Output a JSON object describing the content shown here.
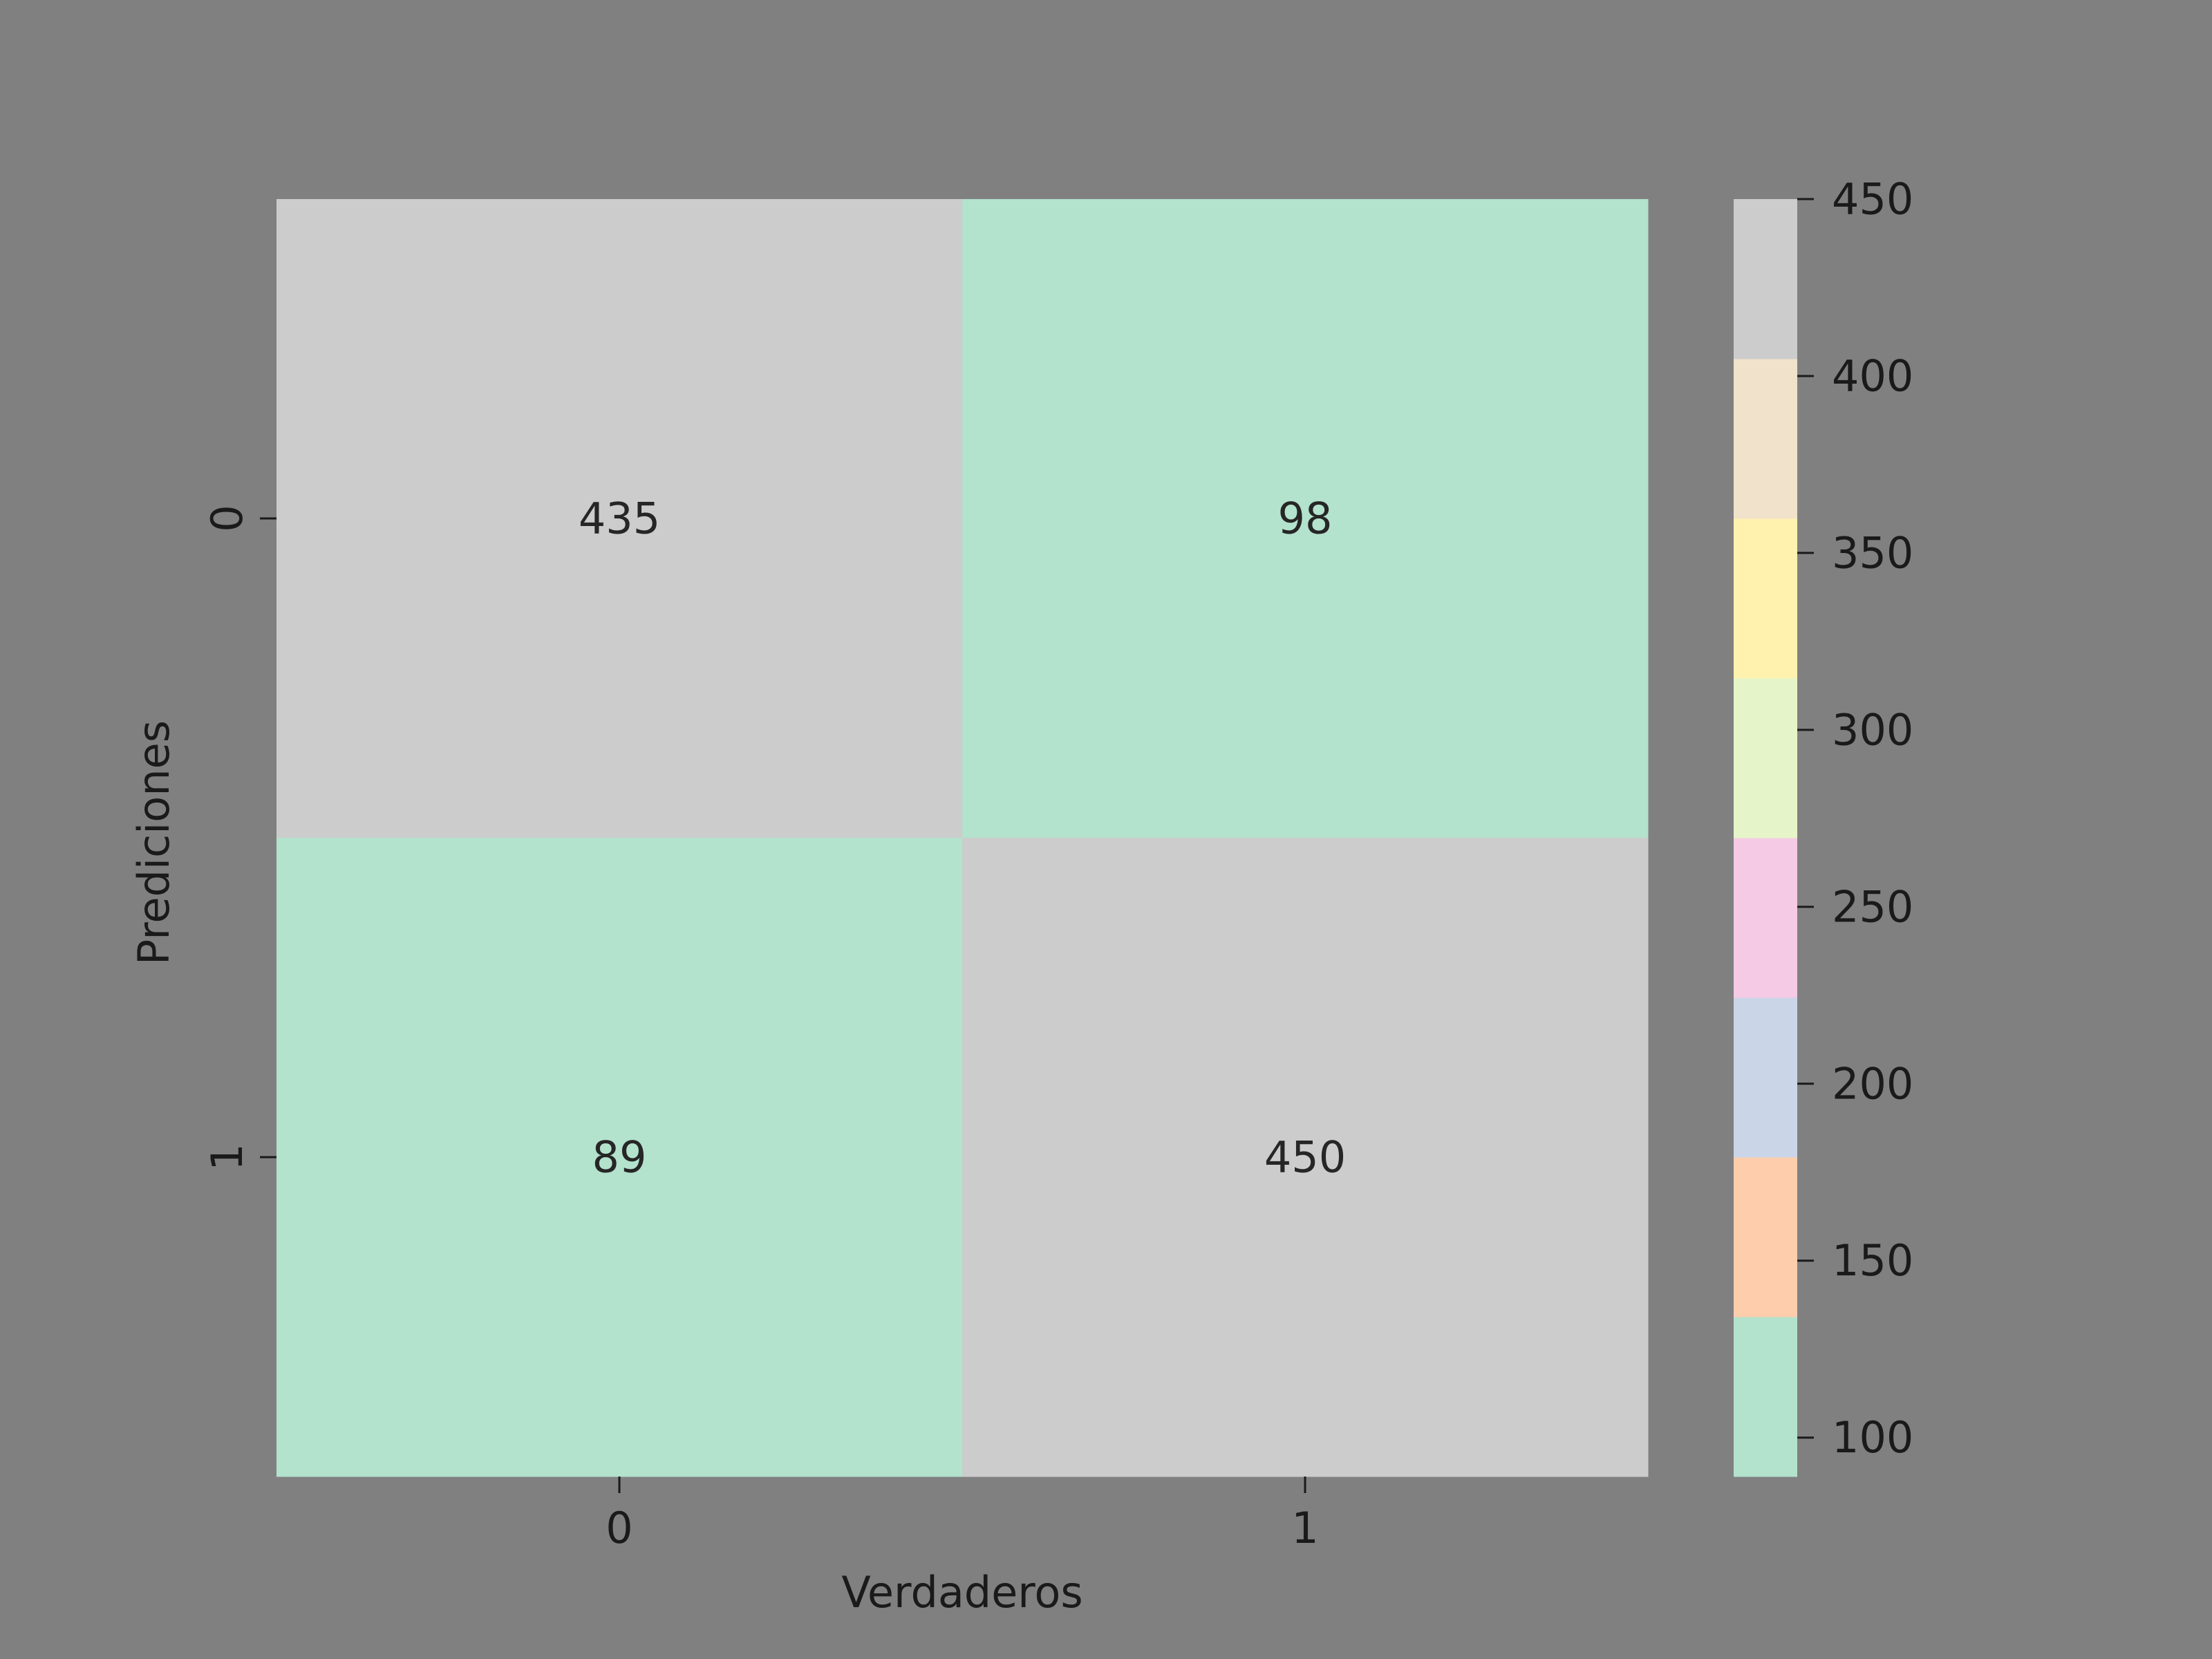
{
  "chart_data": {
    "type": "heatmap",
    "title": "",
    "xlabel": "Verdaderos",
    "ylabel": "Prediciones",
    "x_categories": [
      "0",
      "1"
    ],
    "y_categories": [
      "0",
      "1"
    ],
    "values": [
      [
        435,
        98
      ],
      [
        89,
        450
      ]
    ],
    "colorbar": {
      "range": [
        89,
        450
      ],
      "ticks": [
        100,
        150,
        200,
        250,
        300,
        350,
        400,
        450
      ],
      "tick_labels": [
        "100",
        "150",
        "200",
        "250",
        "300",
        "350",
        "400",
        "450"
      ],
      "bins": 8,
      "colors": [
        "#b3e2cd",
        "#fdcdac",
        "#cbd5e8",
        "#f4cae4",
        "#e6f5c9",
        "#fff2ae",
        "#f1e2cc",
        "#cccccc"
      ]
    },
    "background_color": "#808080",
    "text_color": "#262626",
    "axis_color": "#1a1a1a",
    "grid": false
  }
}
